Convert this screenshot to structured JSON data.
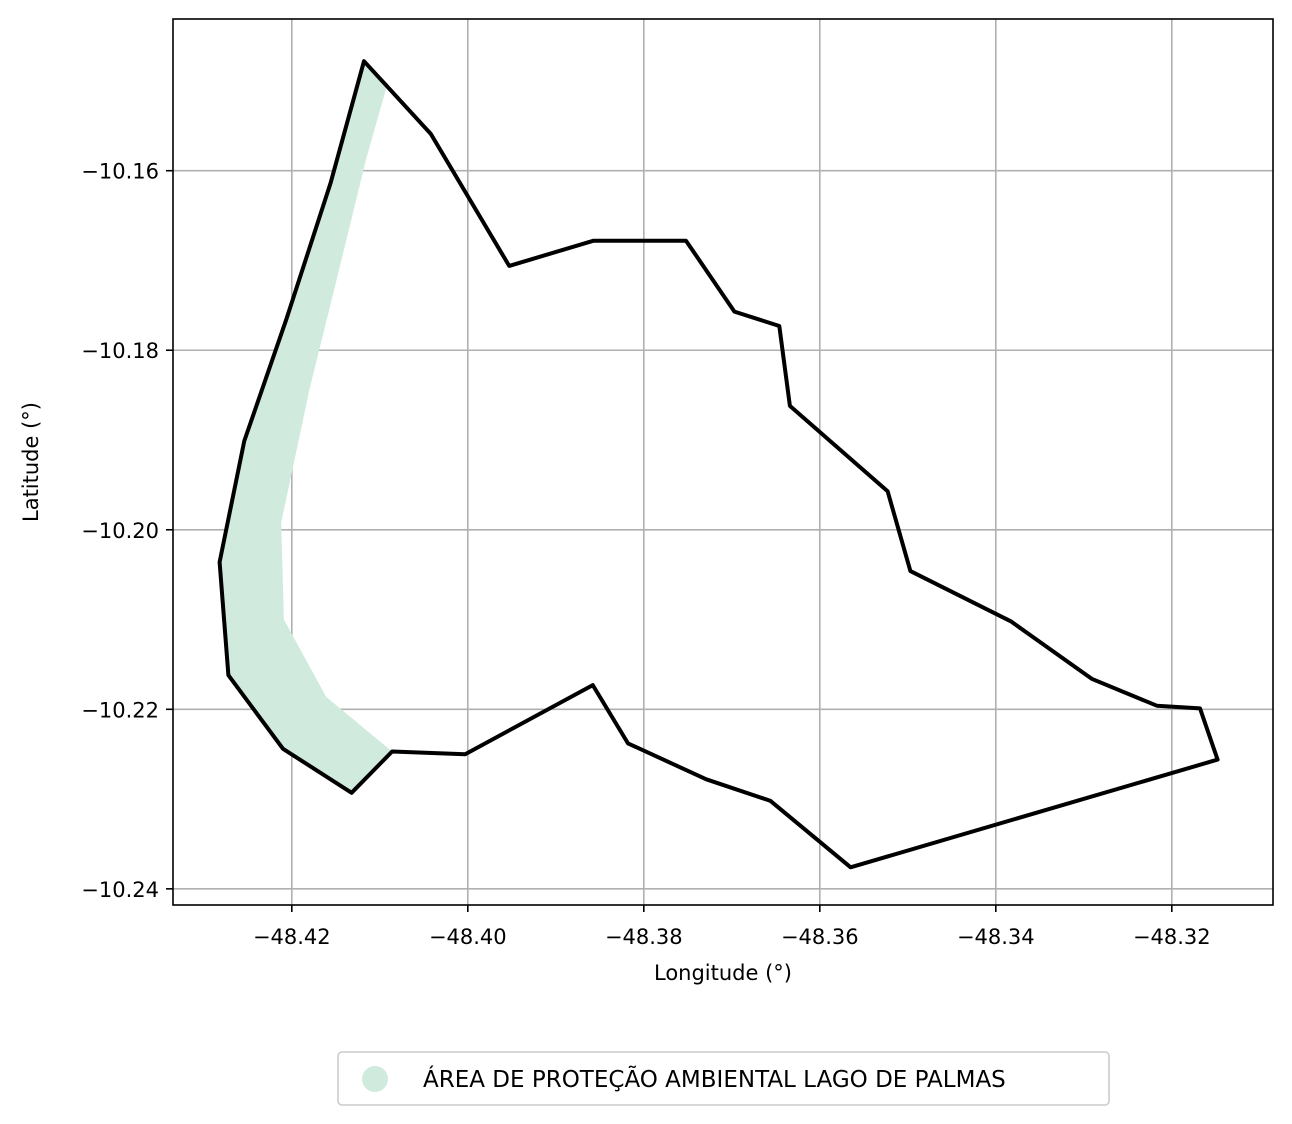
{
  "chart_data": {
    "type": "map",
    "xlabel": "Longitude (°)",
    "ylabel": "Latitude (°)",
    "xlim": [
      -48.4335,
      -48.3085
    ],
    "ylim": [
      -10.2418,
      -10.1431
    ],
    "grid": true,
    "x_ticks": [
      -48.42,
      -48.4,
      -48.38,
      -48.36,
      -48.34,
      -48.32
    ],
    "x_tick_labels": [
      "−48.42",
      "−48.40",
      "−48.38",
      "−48.36",
      "−48.34",
      "−48.32"
    ],
    "y_ticks": [
      -10.16,
      -10.18,
      -10.2,
      -10.22,
      -10.24
    ],
    "y_tick_labels": [
      "−10.16",
      "−10.18",
      "−10.20",
      "−10.22",
      "−10.24"
    ],
    "outline": {
      "color": "#000000",
      "points": [
        [
          -48.4118,
          -10.1478
        ],
        [
          -48.4042,
          -10.1559
        ],
        [
          -48.3953,
          -10.1706
        ],
        [
          -48.3857,
          -10.1678
        ],
        [
          -48.3752,
          -10.1678
        ],
        [
          -48.3697,
          -10.1757
        ],
        [
          -48.3646,
          -10.1773
        ],
        [
          -48.3634,
          -10.1862
        ],
        [
          -48.3523,
          -10.1957
        ],
        [
          -48.3497,
          -10.2046
        ],
        [
          -48.3383,
          -10.2102
        ],
        [
          -48.3291,
          -10.2166
        ],
        [
          -48.3217,
          -10.2196
        ],
        [
          -48.3168,
          -10.2199
        ],
        [
          -48.3148,
          -10.2256
        ],
        [
          -48.3565,
          -10.2376
        ],
        [
          -48.3656,
          -10.2302
        ],
        [
          -48.3729,
          -10.2278
        ],
        [
          -48.3818,
          -10.2238
        ],
        [
          -48.3858,
          -10.2173
        ],
        [
          -48.4003,
          -10.225
        ],
        [
          -48.4086,
          -10.2247
        ],
        [
          -48.4132,
          -10.2293
        ],
        [
          -48.421,
          -10.2244
        ],
        [
          -48.4272,
          -10.2162
        ],
        [
          -48.4282,
          -10.2036
        ],
        [
          -48.4254,
          -10.1901
        ],
        [
          -48.4206,
          -10.1765
        ],
        [
          -48.4156,
          -10.1614
        ],
        [
          -48.4118,
          -10.1478
        ]
      ]
    },
    "series": [
      {
        "name": "ÁREA DE PROTEÇÃO AMBIENTAL LAGO DE PALMAS",
        "color": "#d0ebdd",
        "points": [
          [
            -48.4118,
            -10.1478
          ],
          [
            -48.4092,
            -10.1506
          ],
          [
            -48.4115,
            -10.1585
          ],
          [
            -48.4154,
            -10.1741
          ],
          [
            -48.418,
            -10.1844
          ],
          [
            -48.4212,
            -10.1992
          ],
          [
            -48.4209,
            -10.21
          ],
          [
            -48.4161,
            -10.2186
          ],
          [
            -48.4086,
            -10.2247
          ],
          [
            -48.4132,
            -10.2293
          ],
          [
            -48.421,
            -10.2244
          ],
          [
            -48.4272,
            -10.2162
          ],
          [
            -48.4282,
            -10.2036
          ],
          [
            -48.4254,
            -10.1901
          ],
          [
            -48.4206,
            -10.1765
          ],
          [
            -48.4156,
            -10.1614
          ],
          [
            -48.4118,
            -10.1478
          ]
        ]
      }
    ],
    "legend": {
      "position": "bottom-center",
      "entries": [
        "ÁREA DE PROTEÇÃO AMBIENTAL LAGO DE PALMAS"
      ]
    }
  }
}
